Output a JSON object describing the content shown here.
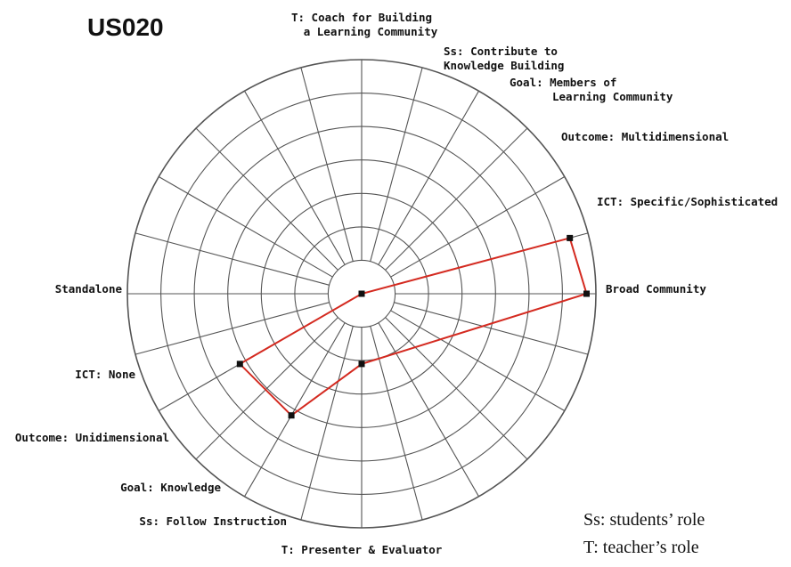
{
  "chart_data": {
    "type": "radar",
    "title": "US020",
    "rings": 7,
    "spokes": 24,
    "axes": [
      {
        "label_lines": [
          "T: Coach for Building",
          "a Learning Community"
        ],
        "angle_deg": 90
      },
      {
        "label_lines": [
          "Ss: Contribute to",
          "Knowledge Building"
        ],
        "angle_deg": 75
      },
      {
        "label_lines": [
          "Goal: Members of",
          "Learning Community"
        ],
        "angle_deg": 60
      },
      {
        "label_lines": [
          "Outcome: Multidimensional"
        ],
        "angle_deg": 45
      },
      {
        "label_lines": [
          "ICT: Specific/Sophisticated"
        ],
        "angle_deg": 15
      },
      {
        "label_lines": [
          "Broad Community"
        ],
        "angle_deg": 0
      },
      {
        "label_lines": [
          "T: Presenter & Evaluator"
        ],
        "angle_deg": 270
      },
      {
        "label_lines": [
          "Ss: Follow Instruction"
        ],
        "angle_deg": 255
      },
      {
        "label_lines": [
          "Goal: Knowledge"
        ],
        "angle_deg": 240
      },
      {
        "label_lines": [
          "Outcome: Unidimensional"
        ],
        "angle_deg": 225
      },
      {
        "label_lines": [
          "ICT: None"
        ],
        "angle_deg": 210
      },
      {
        "label_lines": [
          "Standalone"
        ],
        "angle_deg": 180
      }
    ],
    "polygon_points": [
      {
        "angle_deg": 15,
        "level": 0.92
      },
      {
        "angle_deg": 0,
        "level": 0.96
      },
      {
        "angle_deg": 270,
        "level": 0.3
      },
      {
        "angle_deg": 240,
        "level": 0.6
      },
      {
        "angle_deg": 210,
        "level": 0.6
      },
      {
        "angle_deg": 0,
        "level": 0
      }
    ],
    "line_color": "#d42a20",
    "marker_color": "#111111",
    "grid_color": "#555555"
  },
  "legend_notes": [
    "Ss: students’ role",
    "T:  teacher’s role"
  ]
}
